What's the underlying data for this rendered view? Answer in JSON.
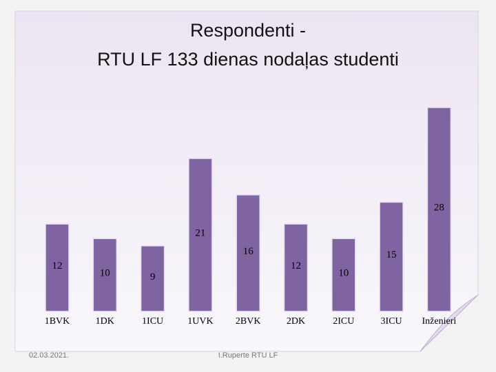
{
  "chart_data": {
    "type": "bar",
    "title": "Respondenti -",
    "subtitle": "RTU LF 133 dienas nodaļas studenti",
    "categories": [
      "1BVK",
      "1DK",
      "1ICU",
      "1UVK",
      "2BVK",
      "2DK",
      "2ICU",
      "3ICU",
      "Inženieri"
    ],
    "values": [
      12,
      10,
      9,
      21,
      16,
      12,
      10,
      15,
      28
    ],
    "color": "#8064a2"
  },
  "footer": {
    "date": "02.03.2021.",
    "author": "I.Ruperte RTU LF"
  }
}
